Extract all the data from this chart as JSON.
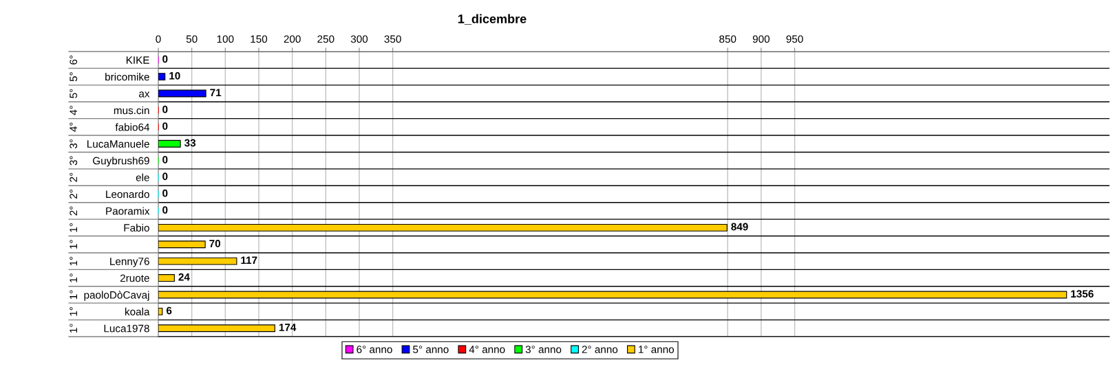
{
  "chart_data": {
    "type": "bar",
    "orientation": "horizontal",
    "stacked": true,
    "title": "1_dicembre",
    "categories": [
      "KIKE",
      "bricomike",
      "ax",
      "mus.cin",
      "fabio64",
      "LucaManuele",
      "Guybrush69",
      "ele",
      "Leonardo",
      "Paoramix",
      "Fabio",
      null,
      "Lenny76",
      "2ruote",
      "paoloDòCavaj",
      "koala",
      "Luca1978"
    ],
    "y2_categories": [
      "6°",
      "5°",
      "5°",
      "4°",
      "4°",
      "3°",
      "3°",
      "2°",
      "2°",
      "2°",
      "1°",
      "1°",
      "1°",
      "1°",
      "1°",
      "1°",
      "1°"
    ],
    "series": [
      {
        "name": "6° anno",
        "color": "#ff00ff",
        "values": [
          0,
          null,
          null,
          null,
          null,
          null,
          null,
          null,
          null,
          null,
          null,
          null,
          null,
          null,
          null,
          null,
          null
        ]
      },
      {
        "name": "5° anno",
        "color": "#0000ff",
        "values": [
          null,
          10,
          71,
          null,
          null,
          null,
          null,
          null,
          null,
          null,
          null,
          null,
          null,
          null,
          null,
          null,
          null
        ]
      },
      {
        "name": "4° anno",
        "color": "#ff0000",
        "values": [
          null,
          null,
          null,
          0,
          0,
          null,
          null,
          null,
          null,
          null,
          null,
          null,
          null,
          null,
          null,
          null,
          null
        ]
      },
      {
        "name": "3° anno",
        "color": "#00ff00",
        "values": [
          null,
          null,
          null,
          null,
          null,
          33,
          0,
          null,
          null,
          null,
          null,
          null,
          null,
          null,
          null,
          null,
          null
        ]
      },
      {
        "name": "2° anno",
        "color": "#00ffff",
        "values": [
          null,
          null,
          null,
          null,
          null,
          null,
          null,
          0,
          0,
          0,
          null,
          null,
          null,
          null,
          null,
          null,
          null
        ]
      },
      {
        "name": "1° anno",
        "color": "#ffcc00",
        "values": [
          null,
          null,
          null,
          null,
          null,
          null,
          null,
          null,
          null,
          null,
          849,
          70,
          117,
          24,
          1356,
          6,
          174
        ]
      }
    ],
    "xlim": [
      0,
      1420
    ],
    "xticks": [
      0,
      50,
      100,
      150,
      200,
      250,
      300,
      350,
      850,
      900,
      950
    ],
    "grid": true,
    "legend": "bottom",
    "data_labels": true
  }
}
